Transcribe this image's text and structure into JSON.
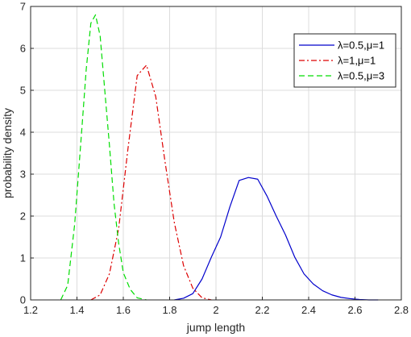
{
  "chart_data": {
    "type": "line",
    "xlabel": "jump length",
    "ylabel": "probability density",
    "xlim": [
      1.2,
      2.8
    ],
    "ylim": [
      0,
      7
    ],
    "xticks": [
      1.2,
      1.4,
      1.6,
      1.8,
      2,
      2.2,
      2.4,
      2.6,
      2.8
    ],
    "yticks": [
      0,
      1,
      2,
      3,
      4,
      5,
      6,
      7
    ],
    "xtick_labels": [
      "1.2",
      "1.4",
      "1.6",
      "1.8",
      "2",
      "2.2",
      "2.4",
      "2.6",
      "2.8"
    ],
    "ytick_labels": [
      "0",
      "1",
      "2",
      "3",
      "4",
      "5",
      "6",
      "7"
    ],
    "grid": true,
    "legend_position": "top-right",
    "series": [
      {
        "name": "λ=0.5,μ=1",
        "color": "#0000cc",
        "dash": "solid",
        "x": [
          1.82,
          1.86,
          1.9,
          1.94,
          1.98,
          2.02,
          2.06,
          2.1,
          2.14,
          2.18,
          2.22,
          2.26,
          2.3,
          2.34,
          2.38,
          2.42,
          2.46,
          2.5,
          2.54,
          2.58,
          2.62,
          2.66,
          2.7
        ],
        "y": [
          0.0,
          0.04,
          0.15,
          0.5,
          1.02,
          1.5,
          2.22,
          2.85,
          2.92,
          2.88,
          2.48,
          2.0,
          1.55,
          1.02,
          0.62,
          0.38,
          0.22,
          0.12,
          0.06,
          0.03,
          0.01,
          0.0,
          0.0
        ]
      },
      {
        "name": "λ=1,μ=1",
        "color": "#dd0000",
        "dash": "dashdot",
        "x": [
          1.46,
          1.5,
          1.54,
          1.58,
          1.62,
          1.66,
          1.7,
          1.74,
          1.78,
          1.82,
          1.86,
          1.9,
          1.94,
          1.98
        ],
        "y": [
          0.0,
          0.12,
          0.62,
          1.7,
          3.6,
          5.35,
          5.6,
          4.85,
          3.3,
          1.85,
          0.82,
          0.28,
          0.05,
          0.0
        ]
      },
      {
        "name": "λ=0.5,μ=3",
        "color": "#00dd00",
        "dash": "dashed",
        "x": [
          1.33,
          1.36,
          1.39,
          1.42,
          1.44,
          1.46,
          1.48,
          1.5,
          1.52,
          1.54,
          1.56,
          1.58,
          1.6,
          1.63,
          1.66,
          1.7
        ],
        "y": [
          0.0,
          0.35,
          1.8,
          4.0,
          5.5,
          6.6,
          6.8,
          6.3,
          5.0,
          3.7,
          2.3,
          1.35,
          0.65,
          0.25,
          0.05,
          0.0
        ]
      }
    ]
  }
}
